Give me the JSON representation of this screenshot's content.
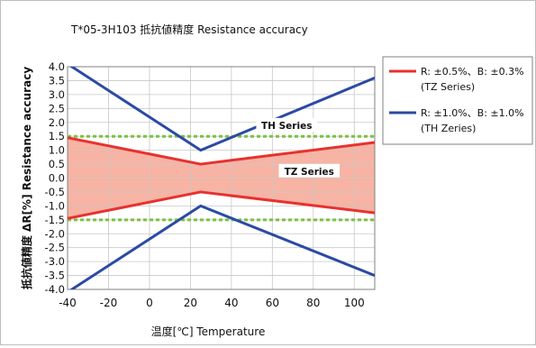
{
  "chart_data": {
    "type": "line",
    "title": "T*05-3H103  抵抗値精度  Resistance accuracy",
    "xlabel": "温度[℃]  Temperature",
    "ylabel": "抵抗値精度 ΔR[%] Resistance accuracy",
    "xlim": [
      -40,
      110
    ],
    "ylim": [
      -4.0,
      4.0
    ],
    "xticks": [
      "-40",
      "-20",
      "0",
      "20",
      "40",
      "60",
      "80",
      "100"
    ],
    "yticks": [
      "4.0",
      "3.5",
      "3.0",
      "2.5",
      "2.0",
      "1.5",
      "1.0",
      "0.5",
      "0.0",
      "-0.5",
      "-1.0",
      "-1.5",
      "-2.0",
      "-2.5",
      "-3.0",
      "-3.5",
      "-4.0"
    ],
    "grid": true,
    "legend_position": "right",
    "series": [
      {
        "name": "R: ±0.5%、B: ±0.3%",
        "name_line2": "(TZ Series)",
        "color": "#e8312f",
        "upper": {
          "x": [
            -40,
            25,
            110
          ],
          "y": [
            1.45,
            0.5,
            1.28
          ]
        },
        "lower": {
          "x": [
            -40,
            25,
            110
          ],
          "y": [
            -1.45,
            -0.5,
            -1.25
          ]
        },
        "fill": "#f7b3a3"
      },
      {
        "name": "R: ±1.0%、B: ±1.0%",
        "name_line2": "(TH Zeries)",
        "color": "#2b4aa3",
        "upper": {
          "x": [
            -40,
            25,
            110
          ],
          "y": [
            4.1,
            1.0,
            3.6
          ]
        },
        "lower": {
          "x": [
            -40,
            25,
            110
          ],
          "y": [
            -4.1,
            -1.0,
            -3.5
          ]
        }
      }
    ],
    "reference_lines": [
      {
        "y": 1.5,
        "color": "#7cc242"
      },
      {
        "y": -1.5,
        "color": "#7cc242"
      }
    ],
    "annotations": [
      {
        "text": "TH Series",
        "x": 67,
        "y": 1.9
      },
      {
        "text": "TZ Series",
        "x": 78,
        "y": 0.25
      }
    ]
  }
}
